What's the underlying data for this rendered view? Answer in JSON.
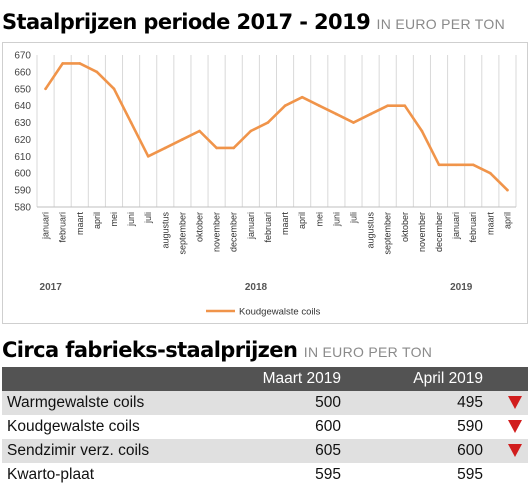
{
  "chart_section": {
    "title": "Staalprijzen periode 2017 - 2019",
    "unit": "IN EURO PER TON"
  },
  "chart_data": {
    "type": "line",
    "categories": [
      "januari",
      "februari",
      "maart",
      "april",
      "mei",
      "juni",
      "juli",
      "augustus",
      "september",
      "oktober",
      "november",
      "december",
      "januari",
      "februari",
      "maart",
      "april",
      "mei",
      "juni",
      "juli",
      "augustus",
      "september",
      "oktober",
      "november",
      "december",
      "januari",
      "februari",
      "maart",
      "april"
    ],
    "years": [
      {
        "label": "2017",
        "start_index": 0
      },
      {
        "label": "2018",
        "start_index": 12
      },
      {
        "label": "2019",
        "start_index": 24
      }
    ],
    "series": [
      {
        "name": "Koudgewalste coils",
        "color": "#f0944a",
        "values": [
          650,
          665,
          665,
          660,
          650,
          630,
          610,
          615,
          620,
          625,
          615,
          615,
          625,
          630,
          640,
          645,
          640,
          635,
          630,
          635,
          640,
          640,
          625,
          605,
          605,
          605,
          600,
          590
        ]
      }
    ],
    "ylim": [
      580,
      670
    ],
    "yticks": [
      580,
      590,
      600,
      610,
      620,
      630,
      640,
      650,
      660,
      670
    ],
    "grid": "vertical",
    "legend": "bottom-center"
  },
  "table_section": {
    "title": "Circa fabrieks-staalprijzen",
    "unit": "IN EURO PER TON",
    "columns": [
      "",
      "Maart 2019",
      "April 2019",
      ""
    ],
    "rows": [
      {
        "product": "Warmgewalste coils",
        "maart": "500",
        "april": "495",
        "trend": "down"
      },
      {
        "product": "Koudgewalste coils",
        "maart": "600",
        "april": "590",
        "trend": "down"
      },
      {
        "product": "Sendzimir verz. coils",
        "maart": "605",
        "april": "600",
        "trend": "down"
      },
      {
        "product": "Kwarto-plaat",
        "maart": "595",
        "april": "595",
        "trend": "none"
      }
    ]
  },
  "colors": {
    "line": "#f0944a",
    "table_header": "#535353",
    "row_shade": "#e0e0e0",
    "trend_down": "#d11d1d"
  }
}
